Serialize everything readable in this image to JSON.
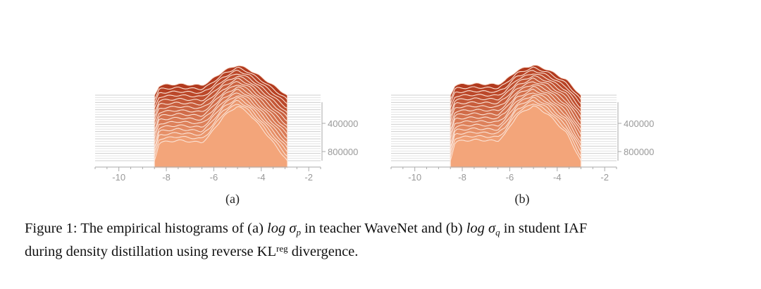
{
  "figure": {
    "panels": [
      {
        "label": "(a)",
        "x_tick_labels": [
          "-10",
          "-8",
          "-6",
          "-4",
          "-2"
        ],
        "y_tick_labels": [
          "400000",
          "800000"
        ]
      },
      {
        "label": "(b)",
        "x_tick_labels": [
          "-10",
          "-8",
          "-6",
          "-4",
          "-2"
        ],
        "y_tick_labels": [
          "400000",
          "800000"
        ]
      }
    ],
    "caption": {
      "prefix": "Figure 1: The empirical histograms of (a)",
      "math_a": "log σ",
      "sub_a": "p",
      "mid": "in teacher WaveNet and (b)",
      "math_b": "log σ",
      "sub_b": "q",
      "suffix_line1": "in student IAF",
      "line2_prefix": "during density distillation using reverse KL",
      "line2_sup": "reg",
      "line2_suffix": "divergence."
    }
  },
  "chart_data": [
    {
      "type": "area",
      "title": "(a) ridgeline histogram of log σ_p in teacher WaveNet",
      "x_ticks": [
        -10,
        -8,
        -6,
        -4,
        -2
      ],
      "xlim": [
        -11,
        -1.5
      ],
      "y_ticks": [
        400000,
        800000
      ],
      "profile_x": [
        -8.5,
        -8.3,
        -7.5,
        -6.5,
        -6.2,
        -5.6,
        -5.0,
        -4.5,
        -3.9,
        -3.3,
        -2.9
      ],
      "profile_y": [
        0.0,
        0.33,
        0.37,
        0.33,
        0.45,
        0.8,
        1.0,
        0.85,
        0.55,
        0.22,
        0.0
      ],
      "series_count": 16,
      "colors": [
        "#b23a1e",
        "#f3a57a"
      ]
    },
    {
      "type": "area",
      "title": "(b) ridgeline histogram of log σ_q in student IAF",
      "x_ticks": [
        -10,
        -8,
        -6,
        -4,
        -2
      ],
      "xlim": [
        -11,
        -1.5
      ],
      "y_ticks": [
        400000,
        800000
      ],
      "profile_x": [
        -8.5,
        -8.3,
        -7.5,
        -6.5,
        -6.2,
        -5.7,
        -5.0,
        -4.4,
        -3.6,
        -3.0
      ],
      "profile_y": [
        0.0,
        0.35,
        0.38,
        0.36,
        0.48,
        0.82,
        1.0,
        0.85,
        0.5,
        0.0
      ],
      "series_count": 16,
      "colors": [
        "#b23a1e",
        "#f3a57a"
      ]
    }
  ]
}
